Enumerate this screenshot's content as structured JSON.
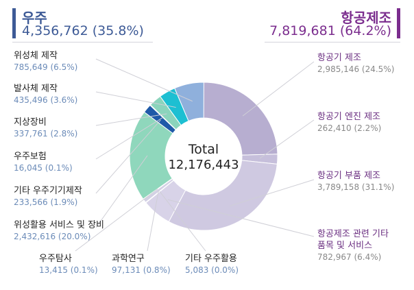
{
  "header": {
    "left": {
      "title": "우주",
      "value": "4,356,762 (35.8%)",
      "color": "#3d5a96"
    },
    "right": {
      "title": "항공제조",
      "value": "7,819,681 (64.2%)",
      "color": "#7b2d8e"
    }
  },
  "chart_data": {
    "type": "pie",
    "donut": true,
    "center_label": "Total",
    "center_value": "12,176,443",
    "slices": [
      {
        "name": "항공기 제조",
        "value": 2985146,
        "display": "2,985,146 (24.5%)",
        "color": "#b7aed0"
      },
      {
        "name": "항공기 엔진 제조",
        "value": 262410,
        "display": "262,410 (2.2%)",
        "color": "#c6bfdb"
      },
      {
        "name": "항공기 부품 제조",
        "value": 3789158,
        "display": "3,789,158 (31.1%)",
        "color": "#cfc9e1"
      },
      {
        "name": "항공제조 관련 기타 품목 및 서비스",
        "value": 782967,
        "display": "782,967 (6.4%)",
        "color": "#d8d3e8"
      },
      {
        "name": "기타 우주활용",
        "value": 5083,
        "display": "5,083 (0.0%)",
        "color": "#c2bcd8"
      },
      {
        "name": "과학연구",
        "value": 97131,
        "display": "97,131 (0.8%)",
        "color": "#d3d0e4"
      },
      {
        "name": "우주탐사",
        "value": 13415,
        "display": "13,415 (0.1%)",
        "color": "#bcc3df"
      },
      {
        "name": "위성활용 서비스 및 장비",
        "value": 2432616,
        "display": "2,432,616 (20.0%)",
        "color": "#8fd7bc"
      },
      {
        "name": "기타 우주기기제작",
        "value": 233566,
        "display": "233,566 (1.9%)",
        "color": "#1f5aa8"
      },
      {
        "name": "우주보험",
        "value": 16045,
        "display": "16,045 (0.1%)",
        "color": "#53b7de"
      },
      {
        "name": "지상장비",
        "value": 337761,
        "display": "337,761 (2.8%)",
        "color": "#8bd4bc"
      },
      {
        "name": "발사체 제작",
        "value": 435496,
        "display": "435,496 (3.6%)",
        "color": "#1dbfd2"
      },
      {
        "name": "위성체 제작",
        "value": 785649,
        "display": "785,649 (6.5%)",
        "color": "#8fb0dc"
      }
    ]
  }
}
